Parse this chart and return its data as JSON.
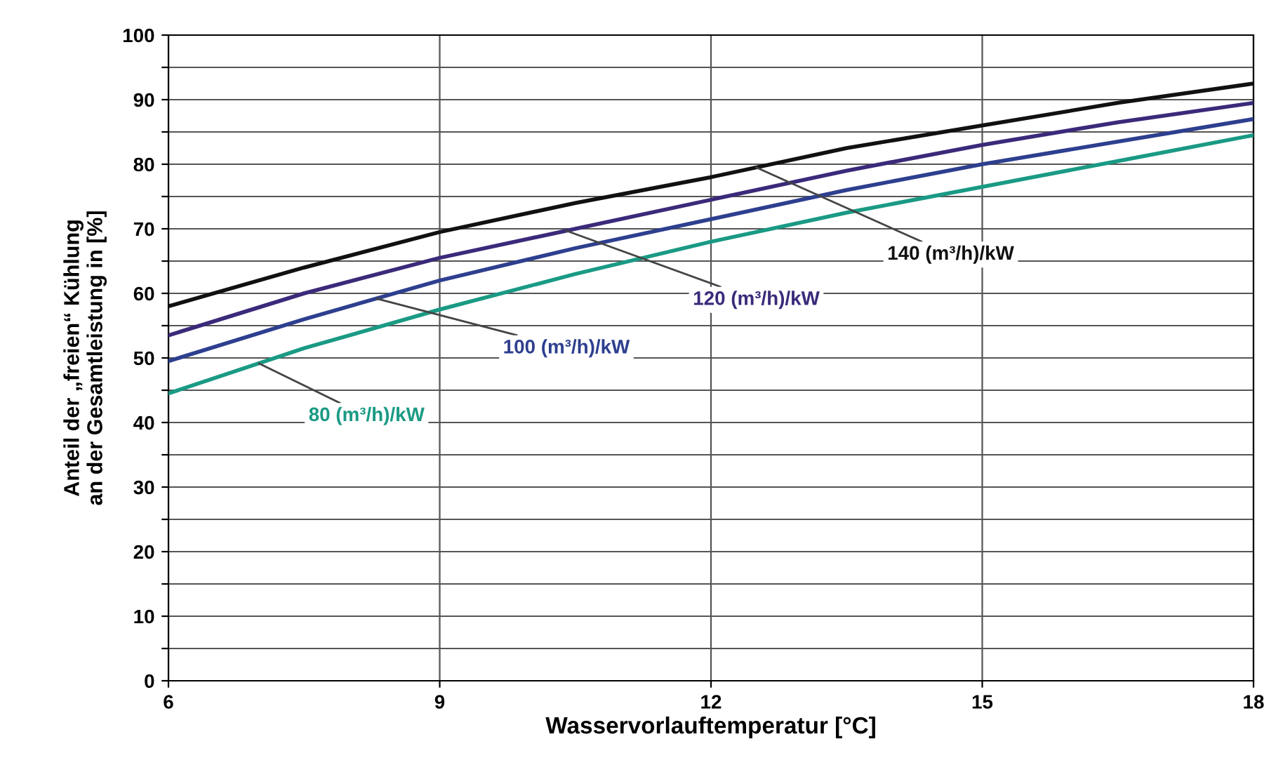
{
  "chart_data": {
    "type": "line",
    "xlabel": "Wasservorlauftemperatur [°C]",
    "ylabel": "Anteil der „freien“ Kühlung\nan der Gesamtleistung in [%]",
    "x": [
      6,
      7.5,
      9,
      10.5,
      12,
      13.5,
      15,
      16.5,
      18
    ],
    "series": [
      {
        "name": "140 (m³/h)/kW",
        "color": "#111111",
        "values": [
          58,
          64,
          69.5,
          74,
          78,
          82.5,
          86,
          89.5,
          92.5
        ]
      },
      {
        "name": "120 (m³/h)/kW",
        "color": "#3b2a7a",
        "values": [
          53.5,
          60,
          65.5,
          70,
          74.5,
          79,
          83,
          86.5,
          89.5
        ]
      },
      {
        "name": "100 (m³/h)/kW",
        "color": "#2e3f8f",
        "values": [
          49.5,
          56,
          62,
          67,
          71.5,
          76,
          80,
          83.5,
          87
        ]
      },
      {
        "name": "80 (m³/h)/kW",
        "color": "#1a9a84",
        "values": [
          44.5,
          51.5,
          57.5,
          63,
          68,
          72.5,
          76.5,
          80.5,
          84.5
        ]
      }
    ],
    "xlim": [
      6,
      18
    ],
    "xticks": [
      6,
      9,
      12,
      15,
      18
    ],
    "ylim": [
      0,
      100
    ],
    "yticks": [
      0,
      {
        "value": 5,
        "label": null
      },
      10,
      {
        "value": 15,
        "label": null
      },
      20,
      {
        "value": 25,
        "label": null
      },
      30,
      {
        "value": 35,
        "label": null
      },
      40,
      {
        "value": 45,
        "label": null
      },
      50,
      {
        "value": 55,
        "label": null
      },
      60,
      {
        "value": 65,
        "label": null
      },
      70,
      {
        "value": 75,
        "label": null
      },
      80,
      {
        "value": 85,
        "label": null
      },
      90,
      {
        "value": 95,
        "label": null
      },
      100
    ],
    "grid": true,
    "marker": "none",
    "line_style": "solid",
    "legend": false
  }
}
